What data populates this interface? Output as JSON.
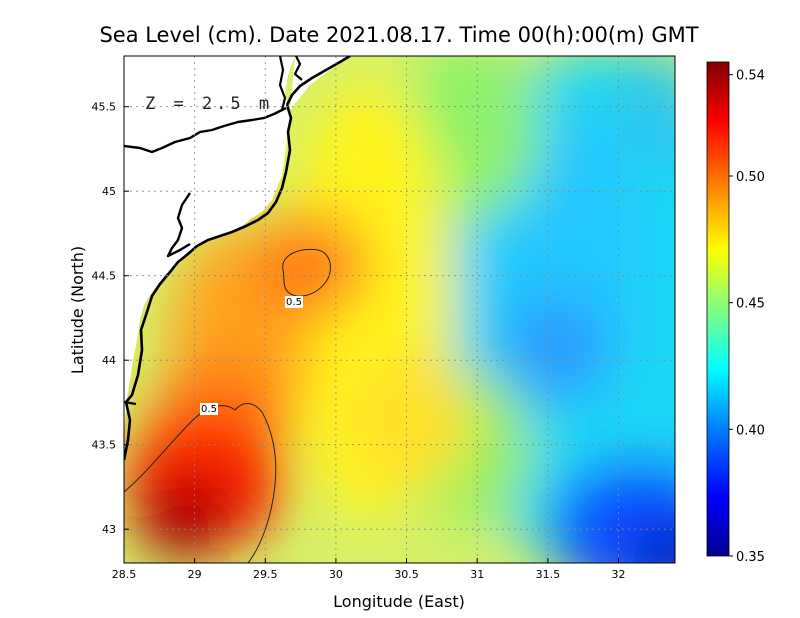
{
  "figure": {
    "title": "Sea Level (cm). Date 2021.08.17. Time 00(h):00(m) GMT",
    "depth_label": "Z = 2.5 m"
  },
  "chart_data": {
    "type": "heatmap",
    "title": "Sea Level (cm). Date 2021.08.17. Time 00(h):00(m) GMT",
    "xlabel": "Longitude (East)",
    "ylabel": "Latitude (North)",
    "xlim": [
      28.5,
      32.4
    ],
    "ylim": [
      42.8,
      45.8
    ],
    "x_ticks": [
      "28.5",
      "29",
      "29.5",
      "30",
      "30.5",
      "31",
      "31.5",
      "32"
    ],
    "x_tick_values": [
      28.5,
      29,
      29.5,
      30,
      30.5,
      31,
      31.5,
      32
    ],
    "y_ticks": [
      "43",
      "43.5",
      "44",
      "44.5",
      "45",
      "45.5"
    ],
    "y_tick_values": [
      43,
      43.5,
      44,
      44.5,
      45,
      45.5
    ],
    "grid": true,
    "colorbar": {
      "range": [
        0.35,
        0.545
      ],
      "ticks": [
        "0.35",
        "0.40",
        "0.45",
        "0.50",
        "0.54"
      ],
      "tick_values": [
        0.35,
        0.4,
        0.45,
        0.5,
        0.54
      ],
      "colormap": [
        "#00008f",
        "#0000ff",
        "#0080ff",
        "#00ffff",
        "#80ff80",
        "#ffff00",
        "#ff8000",
        "#ff0000",
        "#800000"
      ]
    },
    "contours": [
      {
        "level": 0.5,
        "label": "0.5"
      },
      {
        "level": 0.5,
        "label": "0.5"
      }
    ],
    "field_features": [
      {
        "name": "southwest high",
        "lon": 28.95,
        "lat": 43.1,
        "value": 0.545
      },
      {
        "name": "northern high",
        "lon": 29.85,
        "lat": 44.55,
        "value": 0.505
      },
      {
        "name": "coastal band",
        "lon": 29.3,
        "lat": 44.0,
        "value": 0.49
      },
      {
        "name": "central yellow",
        "lon": 30.3,
        "lat": 44.1,
        "value": 0.475
      },
      {
        "name": "eastern low",
        "lon": 31.6,
        "lat": 44.15,
        "value": 0.41
      },
      {
        "name": "northeast low",
        "lon": 32.2,
        "lat": 45.4,
        "value": 0.425
      },
      {
        "name": "southeast low",
        "lon": 32.3,
        "lat": 42.85,
        "value": 0.355
      }
    ]
  }
}
